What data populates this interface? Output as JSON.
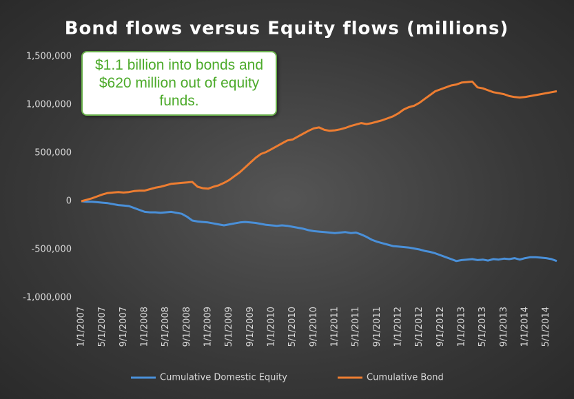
{
  "chart_data": {
    "type": "line",
    "title": "Bond flows versus Equity flows (millions)",
    "annotation": "$1.1 billion into bonds and $620 million out of equity funds.",
    "x": [
      "1/1/2007",
      "2/1/2007",
      "3/1/2007",
      "4/1/2007",
      "5/1/2007",
      "6/1/2007",
      "7/1/2007",
      "8/1/2007",
      "9/1/2007",
      "10/1/2007",
      "11/1/2007",
      "12/1/2007",
      "1/1/2008",
      "2/1/2008",
      "3/1/2008",
      "4/1/2008",
      "5/1/2008",
      "6/1/2008",
      "7/1/2008",
      "8/1/2008",
      "9/1/2008",
      "10/1/2008",
      "11/1/2008",
      "12/1/2008",
      "1/1/2009",
      "2/1/2009",
      "3/1/2009",
      "4/1/2009",
      "5/1/2009",
      "6/1/2009",
      "7/1/2009",
      "8/1/2009",
      "9/1/2009",
      "10/1/2009",
      "11/1/2009",
      "12/1/2009",
      "1/1/2010",
      "2/1/2010",
      "3/1/2010",
      "4/1/2010",
      "5/1/2010",
      "6/1/2010",
      "7/1/2010",
      "8/1/2010",
      "9/1/2010",
      "10/1/2010",
      "11/1/2010",
      "12/1/2010",
      "1/1/2011",
      "2/1/2011",
      "3/1/2011",
      "4/1/2011",
      "5/1/2011",
      "6/1/2011",
      "7/1/2011",
      "8/1/2011",
      "9/1/2011",
      "10/1/2011",
      "11/1/2011",
      "12/1/2011",
      "1/1/2012",
      "2/1/2012",
      "3/1/2012",
      "4/1/2012",
      "5/1/2012",
      "6/1/2012",
      "7/1/2012",
      "8/1/2012",
      "9/1/2012",
      "10/1/2012",
      "11/1/2012",
      "12/1/2012",
      "1/1/2013",
      "2/1/2013",
      "3/1/2013",
      "4/1/2013",
      "5/1/2013",
      "6/1/2013",
      "7/1/2013",
      "8/1/2013",
      "9/1/2013",
      "10/1/2013",
      "11/1/2013",
      "12/1/2013",
      "1/1/2014",
      "2/1/2014",
      "3/1/2014",
      "4/1/2014",
      "5/1/2014",
      "6/1/2014",
      "7/1/2014"
    ],
    "xticks": [
      "1/1/2007",
      "5/1/2007",
      "9/1/2007",
      "1/1/2008",
      "5/1/2008",
      "9/1/2008",
      "1/1/2009",
      "5/1/2009",
      "9/1/2009",
      "1/1/2010",
      "5/1/2010",
      "9/1/2010",
      "1/1/2011",
      "5/1/2011",
      "9/1/2011",
      "1/1/2012",
      "5/1/2012",
      "9/1/2012",
      "1/1/2013",
      "5/1/2013",
      "9/1/2013",
      "1/1/2014",
      "5/1/2014"
    ],
    "series": [
      {
        "name": "Cumulative Domestic Equity",
        "color": "#4a90d9",
        "values": [
          0,
          -5000,
          -5000,
          -10000,
          -15000,
          -20000,
          -30000,
          -40000,
          -45000,
          -50000,
          -70000,
          -90000,
          -110000,
          -115000,
          -115000,
          -120000,
          -115000,
          -110000,
          -120000,
          -130000,
          -160000,
          -200000,
          -210000,
          -215000,
          -220000,
          -230000,
          -240000,
          -250000,
          -240000,
          -230000,
          -220000,
          -215000,
          -220000,
          -225000,
          -235000,
          -245000,
          -250000,
          -255000,
          -250000,
          -255000,
          -265000,
          -275000,
          -285000,
          -300000,
          -310000,
          -315000,
          -320000,
          -325000,
          -330000,
          -325000,
          -320000,
          -330000,
          -325000,
          -345000,
          -370000,
          -400000,
          -420000,
          -435000,
          -450000,
          -465000,
          -470000,
          -475000,
          -480000,
          -490000,
          -500000,
          -515000,
          -525000,
          -540000,
          -560000,
          -580000,
          -600000,
          -620000,
          -610000,
          -605000,
          -600000,
          -610000,
          -605000,
          -615000,
          -600000,
          -605000,
          -595000,
          -600000,
          -590000,
          -605000,
          -590000,
          -580000,
          -580000,
          -585000,
          -590000,
          -600000,
          -620000
        ]
      },
      {
        "name": "Cumulative Bond",
        "color": "#ed7d31",
        "values": [
          0,
          15000,
          30000,
          50000,
          70000,
          85000,
          90000,
          95000,
          90000,
          95000,
          105000,
          110000,
          110000,
          125000,
          140000,
          150000,
          165000,
          180000,
          185000,
          190000,
          195000,
          200000,
          150000,
          135000,
          130000,
          150000,
          165000,
          190000,
          220000,
          260000,
          300000,
          350000,
          400000,
          450000,
          490000,
          510000,
          540000,
          570000,
          600000,
          630000,
          640000,
          670000,
          700000,
          730000,
          755000,
          765000,
          740000,
          730000,
          735000,
          745000,
          760000,
          780000,
          795000,
          810000,
          800000,
          810000,
          825000,
          840000,
          860000,
          880000,
          910000,
          950000,
          975000,
          990000,
          1020000,
          1060000,
          1100000,
          1140000,
          1160000,
          1180000,
          1200000,
          1210000,
          1230000,
          1235000,
          1240000,
          1180000,
          1170000,
          1150000,
          1130000,
          1120000,
          1110000,
          1090000,
          1080000,
          1075000,
          1080000,
          1090000,
          1100000,
          1110000,
          1120000,
          1130000,
          1140000
        ]
      }
    ],
    "ylim": [
      -1000000,
      1500000
    ],
    "yticks": [
      {
        "value": -1000000,
        "label": "-1,000,000"
      },
      {
        "value": -500000,
        "label": "-500,000"
      },
      0,
      {
        "value": 500000,
        "label": "500,000"
      },
      {
        "value": 1000000,
        "label": "1,000,000"
      },
      {
        "value": 1500000,
        "label": "1,500,000"
      }
    ],
    "grid": false,
    "legend": "bottom"
  }
}
